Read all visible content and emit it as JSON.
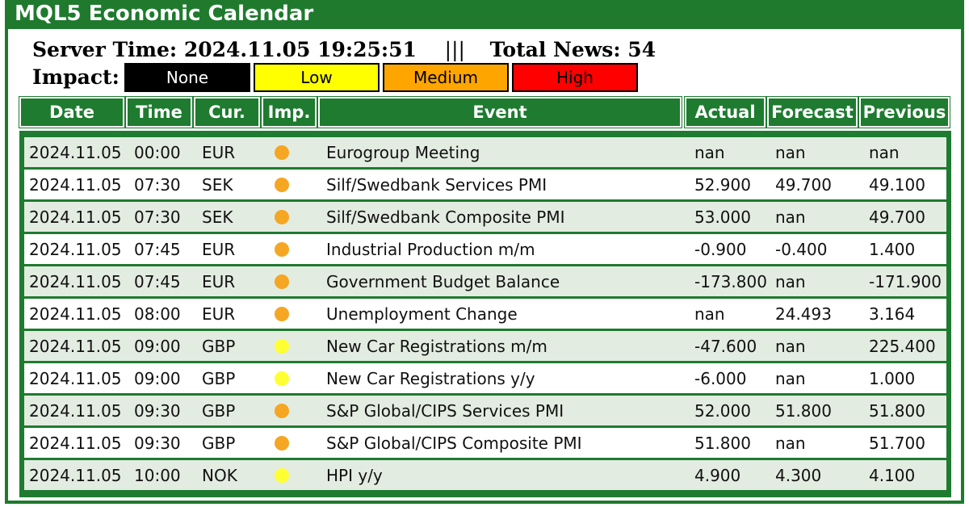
{
  "app": {
    "title": "MQL5 Economic Calendar"
  },
  "info": {
    "server_time_label": "Server Time: 2024.11.05 19:25:51",
    "separator": "|||",
    "total_news_label": "Total News: 54"
  },
  "impact": {
    "label": "Impact:",
    "buttons": [
      {
        "label": "None",
        "bg": "#000000",
        "fg": "#ffffff"
      },
      {
        "label": "Low",
        "bg": "#ffff00",
        "fg": "#000000"
      },
      {
        "label": "Medium",
        "bg": "#ffa500",
        "fg": "#000000"
      },
      {
        "label": "High",
        "bg": "#ff0000",
        "fg": "#000000"
      }
    ]
  },
  "columns": [
    "Date",
    "Time",
    "Cur.",
    "Imp.",
    "Event",
    "Actual",
    "Forecast",
    "Previous"
  ],
  "colors": {
    "green": "#1e7b2f",
    "row_alt": "#e3ece1",
    "medium_dot": "#f5a623",
    "low_dot": "#ffff33"
  },
  "rows": [
    {
      "date": "2024.11.05",
      "time": "00:00",
      "cur": "EUR",
      "imp": "medium",
      "event": "Eurogroup Meeting",
      "actual": "nan",
      "forecast": "nan",
      "previous": "nan"
    },
    {
      "date": "2024.11.05",
      "time": "07:30",
      "cur": "SEK",
      "imp": "medium",
      "event": "Silf/Swedbank Services PMI",
      "actual": "52.900",
      "forecast": "49.700",
      "previous": "49.100"
    },
    {
      "date": "2024.11.05",
      "time": "07:30",
      "cur": "SEK",
      "imp": "medium",
      "event": "Silf/Swedbank Composite PMI",
      "actual": "53.000",
      "forecast": "nan",
      "previous": "49.700"
    },
    {
      "date": "2024.11.05",
      "time": "07:45",
      "cur": "EUR",
      "imp": "medium",
      "event": "Industrial Production m/m",
      "actual": "-0.900",
      "forecast": "-0.400",
      "previous": "1.400"
    },
    {
      "date": "2024.11.05",
      "time": "07:45",
      "cur": "EUR",
      "imp": "medium",
      "event": "Government Budget Balance",
      "actual": "-173.800",
      "forecast": "nan",
      "previous": "-171.900"
    },
    {
      "date": "2024.11.05",
      "time": "08:00",
      "cur": "EUR",
      "imp": "medium",
      "event": "Unemployment Change",
      "actual": "nan",
      "forecast": "24.493",
      "previous": "3.164"
    },
    {
      "date": "2024.11.05",
      "time": "09:00",
      "cur": "GBP",
      "imp": "low",
      "event": "New Car Registrations m/m",
      "actual": "-47.600",
      "forecast": "nan",
      "previous": "225.400"
    },
    {
      "date": "2024.11.05",
      "time": "09:00",
      "cur": "GBP",
      "imp": "low",
      "event": "New Car Registrations y/y",
      "actual": "-6.000",
      "forecast": "nan",
      "previous": "1.000"
    },
    {
      "date": "2024.11.05",
      "time": "09:30",
      "cur": "GBP",
      "imp": "medium",
      "event": "S&P Global/CIPS Services PMI",
      "actual": "52.000",
      "forecast": "51.800",
      "previous": "51.800"
    },
    {
      "date": "2024.11.05",
      "time": "09:30",
      "cur": "GBP",
      "imp": "medium",
      "event": "S&P Global/CIPS Composite PMI",
      "actual": "51.800",
      "forecast": "nan",
      "previous": "51.700"
    },
    {
      "date": "2024.11.05",
      "time": "10:00",
      "cur": "NOK",
      "imp": "low",
      "event": "HPI y/y",
      "actual": "4.900",
      "forecast": "4.300",
      "previous": "4.100"
    }
  ]
}
